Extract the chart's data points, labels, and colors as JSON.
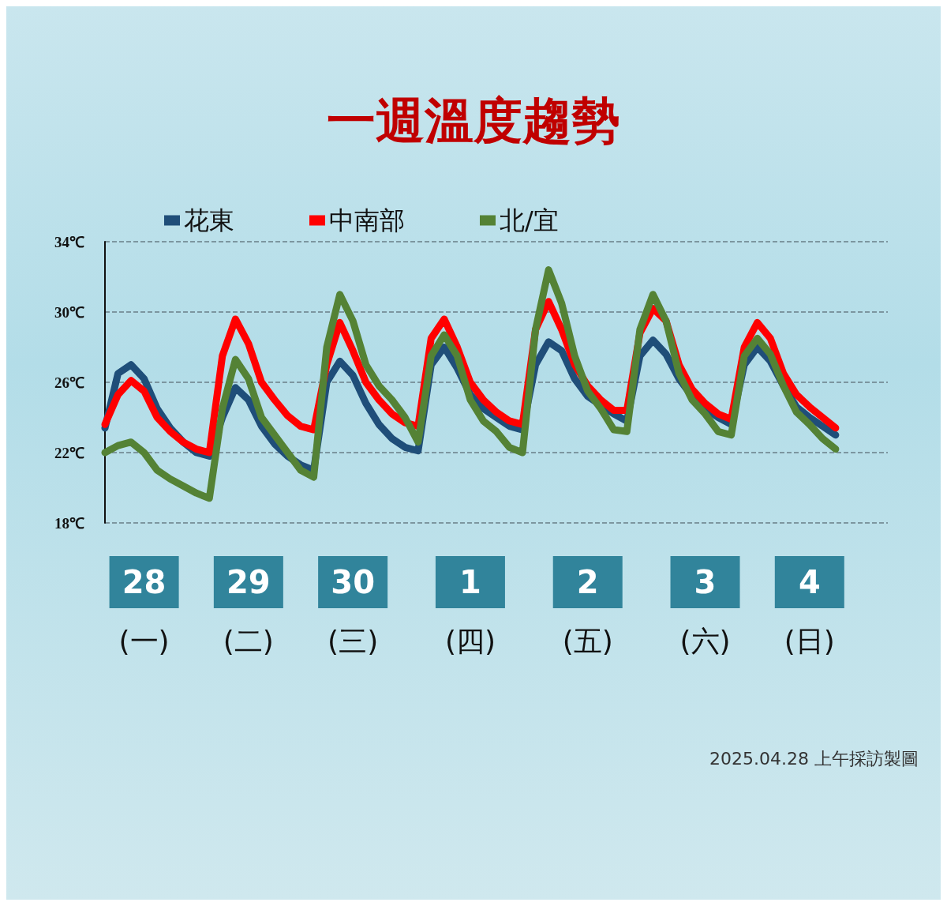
{
  "chart_data": {
    "type": "line",
    "title": "一週溫度趨勢",
    "annotations": [
      "2025.04.28 上午採訪製圖"
    ],
    "categories": [
      null,
      null,
      null,
      "28\n(一)",
      null,
      null,
      null,
      null,
      null,
      null,
      null,
      "29\n(二)",
      null,
      null,
      null,
      null,
      null,
      null,
      null,
      "30\n(三)",
      null,
      null,
      null,
      null,
      null,
      null,
      null,
      null,
      "1\n(四)",
      null,
      null,
      null,
      null,
      null,
      null,
      null,
      null,
      "2\n(五)",
      null,
      null,
      null,
      null,
      null,
      null,
      null,
      null,
      "3\n(六)",
      null,
      null,
      null,
      null,
      null,
      null,
      null,
      "4\n(日)",
      null,
      null,
      null,
      null,
      null,
      null
    ],
    "series": [
      {
        "name": "花東",
        "color": "#1f4e79",
        "values": [
          23.4,
          26.5,
          27.0,
          26.2,
          24.5,
          23.4,
          22.6,
          22.0,
          21.8,
          24.0,
          25.7,
          25.0,
          23.5,
          22.5,
          21.8,
          21.3,
          21.0,
          26.0,
          27.2,
          26.4,
          24.8,
          23.6,
          22.8,
          22.3,
          22.1,
          27.0,
          28.0,
          26.8,
          25.3,
          24.5,
          24.0,
          23.5,
          23.3,
          27.0,
          28.3,
          27.8,
          26.2,
          25.2,
          24.7,
          24.2,
          23.8,
          27.5,
          28.4,
          27.6,
          26.2,
          25.2,
          24.5,
          24.0,
          23.6,
          27.0,
          28.0,
          27.2,
          25.8,
          24.6,
          24.0,
          23.5,
          23.0,
          null,
          null,
          null,
          null
        ]
      },
      {
        "name": "中南部",
        "color": "#ff0000",
        "values": [
          23.6,
          25.3,
          26.1,
          25.5,
          24.0,
          23.2,
          22.6,
          22.2,
          22.0,
          27.5,
          29.6,
          28.2,
          26.0,
          25.0,
          24.1,
          23.5,
          23.3,
          27.0,
          29.4,
          27.8,
          26.0,
          25.0,
          24.2,
          23.7,
          23.5,
          28.5,
          29.6,
          28.0,
          26.0,
          25.0,
          24.3,
          23.8,
          23.6,
          29.0,
          30.6,
          29.0,
          27.0,
          25.8,
          25.0,
          24.4,
          24.4,
          28.8,
          30.2,
          29.5,
          27.0,
          25.6,
          24.8,
          24.2,
          23.9,
          28.0,
          29.4,
          28.5,
          26.5,
          25.3,
          24.6,
          24.0,
          23.4,
          null,
          null,
          null,
          null
        ]
      },
      {
        "name": "北/宜",
        "color": "#548235",
        "values": [
          22.0,
          22.4,
          22.6,
          22.0,
          21.0,
          20.5,
          20.1,
          19.7,
          19.4,
          24.5,
          27.3,
          26.2,
          24.0,
          23.0,
          22.0,
          21.0,
          20.6,
          28.0,
          31.0,
          29.5,
          27.0,
          25.8,
          25.0,
          24.0,
          22.6,
          27.5,
          28.7,
          27.5,
          25.0,
          23.8,
          23.2,
          22.3,
          22.0,
          29.0,
          32.4,
          30.5,
          27.5,
          25.5,
          24.5,
          23.3,
          23.2,
          29.0,
          31.0,
          29.5,
          26.5,
          25.0,
          24.2,
          23.2,
          23.0,
          27.5,
          28.5,
          27.6,
          25.8,
          24.3,
          23.6,
          22.8,
          22.2,
          null,
          null,
          null,
          null
        ]
      }
    ],
    "ylim": [
      18,
      34
    ],
    "yticks": [
      {
        "value": 18,
        "label": "18℃"
      },
      {
        "value": 22,
        "label": "22℃"
      },
      {
        "value": 26,
        "label": "26℃"
      },
      {
        "value": 30,
        "label": "30℃"
      },
      {
        "value": 34,
        "label": "34℃"
      }
    ],
    "grid": "y",
    "legend": "top",
    "marker": "none",
    "line_style": "solid"
  }
}
